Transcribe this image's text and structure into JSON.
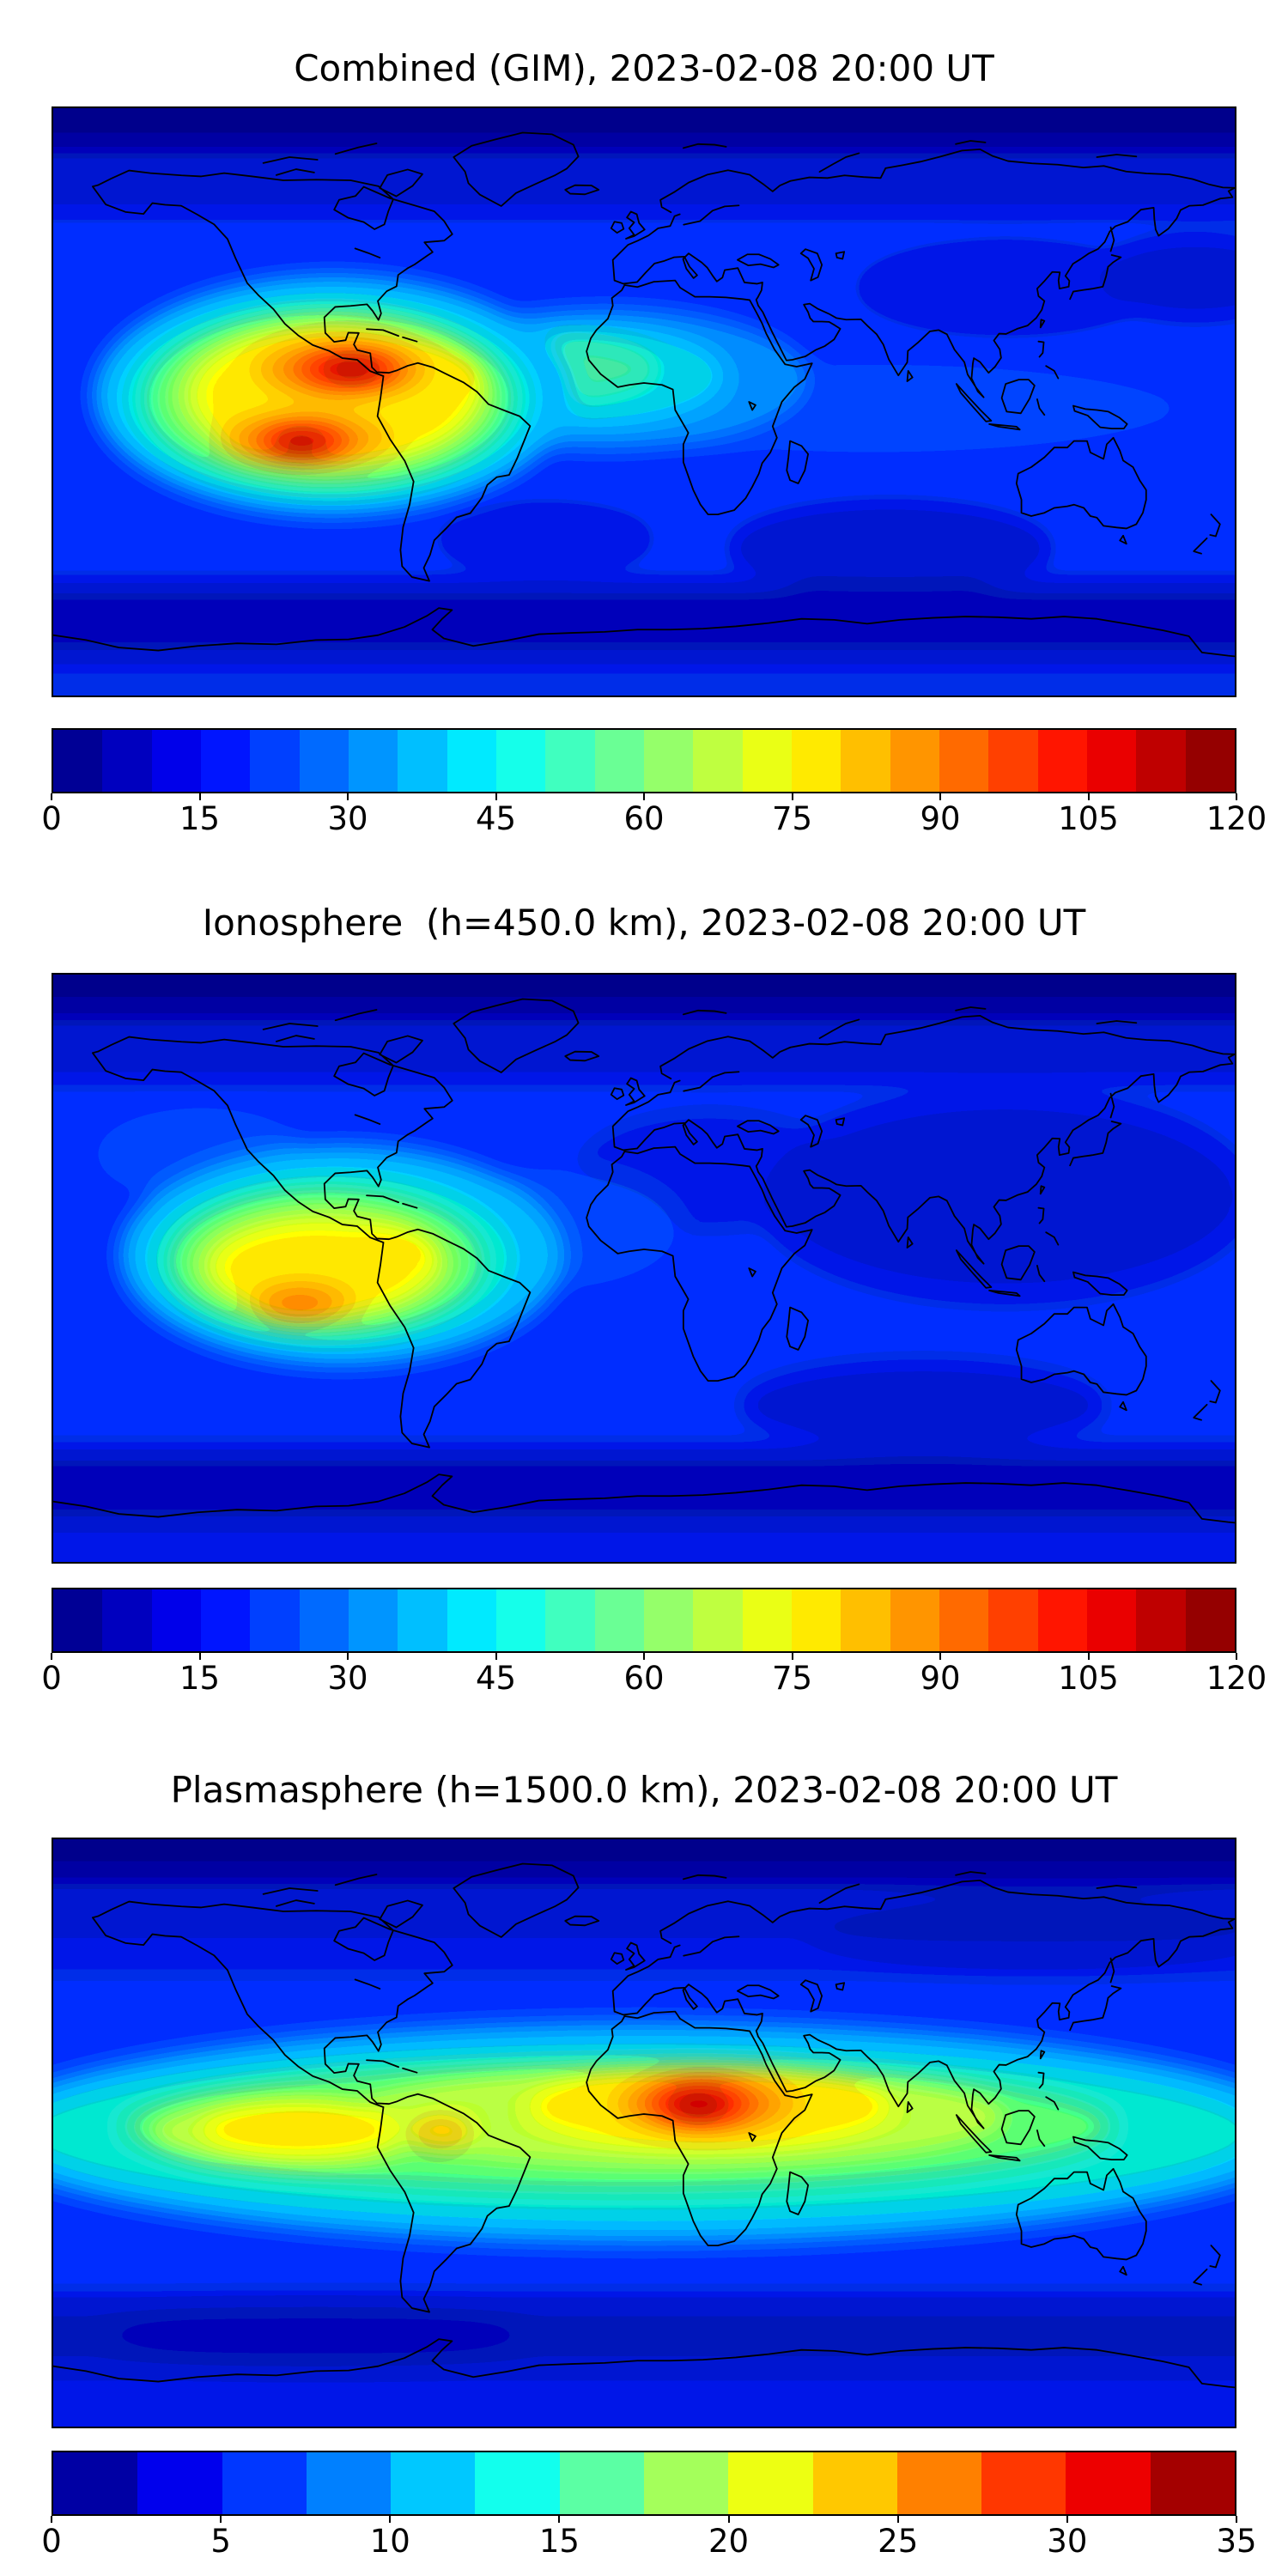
{
  "figure_background": "#ffffff",
  "panels": [
    {
      "id": "combined",
      "title": "Combined (GIM), 2023-02-08 20:00 UT",
      "colorbar": {
        "min": 0,
        "max": 120,
        "ticks": [
          0,
          15,
          30,
          45,
          60,
          75,
          90,
          105,
          120
        ],
        "levels": 24,
        "colormap": "jet"
      }
    },
    {
      "id": "ionosphere",
      "title": "Ionosphere  (h=450.0 km), 2023-02-08 20:00 UT",
      "colorbar": {
        "min": 0,
        "max": 120,
        "ticks": [
          0,
          15,
          30,
          45,
          60,
          75,
          90,
          105,
          120
        ],
        "levels": 24,
        "colormap": "jet"
      }
    },
    {
      "id": "plasmasphere",
      "title": "Plasmasphere (h=1500.0 km), 2023-02-08 20:00 UT",
      "colorbar": {
        "min": 0,
        "max": 35,
        "ticks": [
          0,
          5,
          10,
          15,
          20,
          25,
          30,
          35
        ],
        "levels": 14,
        "colormap": "jet"
      }
    }
  ],
  "chart_data": [
    {
      "type": "heatmap",
      "title": "Combined (GIM), 2023-02-08 20:00 UT",
      "projection": "equirectangular",
      "xlabel": "longitude_deg",
      "xlim": [
        -180,
        180
      ],
      "ylabel": "latitude_deg",
      "ylim": [
        -90,
        90
      ],
      "colormap": "jet",
      "value_range": [
        0,
        120
      ],
      "colorbar_ticks": [
        0,
        15,
        30,
        45,
        60,
        75,
        90,
        105,
        120
      ],
      "grid": false,
      "legend": "horizontal colorbar below map",
      "features": [
        {
          "label": "north crest of equatorial anomaly (eastern Pacific / Colombia)",
          "lon": -88,
          "lat": 9,
          "value": 112
        },
        {
          "label": "south crest of equatorial anomaly (eastern Pacific)",
          "lon": -104,
          "lat": -13,
          "value": 108
        },
        {
          "label": "yellow enhancement over northern South America",
          "lon": -70,
          "lat": 2,
          "value": 72
        },
        {
          "label": "green-cyan enhancement over tropical Atlantic and West Africa",
          "lon": -18,
          "lat": 5,
          "value": 50
        },
        {
          "label": "mid-latitude ocean background",
          "value": 15
        },
        {
          "label": "high-latitude / night-side minimum (Asia, polar bands)",
          "value": 5
        }
      ]
    },
    {
      "type": "heatmap",
      "title": "Ionosphere  (h=450.0 km), 2023-02-08 20:00 UT",
      "projection": "equirectangular",
      "xlabel": "longitude_deg",
      "xlim": [
        -180,
        180
      ],
      "ylabel": "latitude_deg",
      "ylim": [
        -90,
        90
      ],
      "colormap": "jet",
      "value_range": [
        0,
        120
      ],
      "colorbar_ticks": [
        0,
        15,
        30,
        45,
        60,
        75,
        90,
        105,
        120
      ],
      "grid": false,
      "legend": "horizontal colorbar below map",
      "features": [
        {
          "label": "peak (orange) south-east Pacific crest",
          "lon": -104,
          "lat": -12,
          "value": 82
        },
        {
          "label": "yellow plateau over eastern Pacific / western South America",
          "lon": -90,
          "lat": 0,
          "value": 65
        },
        {
          "label": "cyan-green halo",
          "lon": -95,
          "lat": 5,
          "value": 45
        },
        {
          "label": "ocean background",
          "value": 12
        },
        {
          "label": "dark minimum over Asia and high latitudes",
          "value": 5
        }
      ]
    },
    {
      "type": "heatmap",
      "title": "Plasmasphere (h=1500.0 km), 2023-02-08 20:00 UT",
      "projection": "equirectangular",
      "xlabel": "longitude_deg",
      "xlim": [
        -180,
        180
      ],
      "ylabel": "latitude_deg",
      "ylim": [
        -90,
        90
      ],
      "colormap": "jet",
      "value_range": [
        0,
        35
      ],
      "colorbar_ticks": [
        0,
        5,
        10,
        15,
        20,
        25,
        30,
        35
      ],
      "grid": false,
      "legend": "horizontal colorbar below map",
      "features": [
        {
          "label": "dark-red maximum over central Africa",
          "lon": 18,
          "lat": 9,
          "value": 34
        },
        {
          "label": "orange ring around African maximum",
          "lon": 18,
          "lat": 8,
          "value": 28
        },
        {
          "label": "small orange spot over northern South America",
          "lon": -62,
          "lat": 0,
          "value": 25
        },
        {
          "label": "yellow patch over eastern Pacific",
          "lon": -108,
          "lat": 0,
          "value": 23
        },
        {
          "label": "green-cyan equatorial belt spanning all longitudes",
          "lat_band": [
            -25,
            25
          ],
          "value": 16
        },
        {
          "label": "mid-latitude blue background",
          "value": 8
        },
        {
          "label": "polar minima",
          "value": 4
        }
      ]
    }
  ]
}
